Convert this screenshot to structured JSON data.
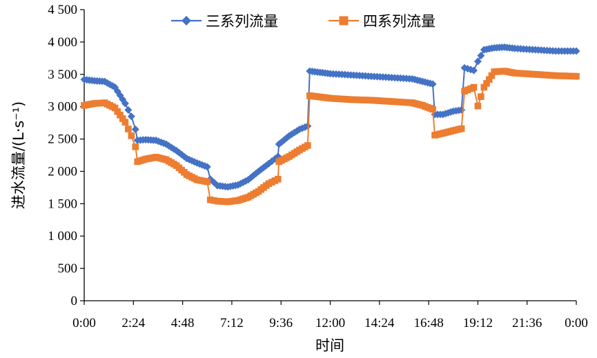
{
  "chart_data": {
    "type": "line",
    "xlabel": "时间",
    "ylabel": "进水流量/(L·s⁻¹)",
    "ylim": [
      0,
      4500
    ],
    "y_ticks": [
      0,
      500,
      1000,
      1500,
      2000,
      2500,
      3000,
      3500,
      4000,
      4500
    ],
    "y_tick_labels": [
      "0",
      "500",
      "1 000",
      "1 500",
      "2 000",
      "2 500",
      "3 000",
      "3 500",
      "4 000",
      "4 500"
    ],
    "x_tick_labels": [
      "0:00",
      "2:24",
      "4:48",
      "7:12",
      "9:36",
      "12:00",
      "14:24",
      "16:48",
      "19:12",
      "21:36",
      "0:00"
    ],
    "x_range_hours": [
      0,
      24
    ],
    "grid": false,
    "legend_position": "top",
    "series": [
      {
        "name": "三系列流量",
        "color": "#4472C4",
        "marker": "diamond",
        "points": [
          [
            0.0,
            3420
          ],
          [
            0.5,
            3400
          ],
          [
            1.0,
            3390
          ],
          [
            1.5,
            3300
          ],
          [
            2.0,
            3050
          ],
          [
            2.3,
            2850
          ],
          [
            2.5,
            2650
          ],
          [
            2.6,
            2480
          ],
          [
            3.0,
            2490
          ],
          [
            3.5,
            2480
          ],
          [
            4.0,
            2420
          ],
          [
            4.5,
            2320
          ],
          [
            5.0,
            2200
          ],
          [
            5.5,
            2130
          ],
          [
            6.0,
            2070
          ],
          [
            6.15,
            1880
          ],
          [
            6.5,
            1780
          ],
          [
            7.0,
            1760
          ],
          [
            7.5,
            1790
          ],
          [
            8.0,
            1870
          ],
          [
            8.5,
            2000
          ],
          [
            9.0,
            2120
          ],
          [
            9.45,
            2230
          ],
          [
            9.5,
            2420
          ],
          [
            10.0,
            2550
          ],
          [
            10.5,
            2650
          ],
          [
            10.9,
            2700
          ],
          [
            11.0,
            3550
          ],
          [
            11.5,
            3530
          ],
          [
            12.0,
            3510
          ],
          [
            13.0,
            3490
          ],
          [
            14.0,
            3470
          ],
          [
            15.0,
            3450
          ],
          [
            16.0,
            3430
          ],
          [
            16.5,
            3390
          ],
          [
            17.0,
            3350
          ],
          [
            17.1,
            2880
          ],
          [
            17.5,
            2880
          ],
          [
            18.0,
            2930
          ],
          [
            18.4,
            2950
          ],
          [
            18.55,
            3600
          ],
          [
            19.0,
            3560
          ],
          [
            19.2,
            3700
          ],
          [
            19.5,
            3880
          ],
          [
            20.0,
            3910
          ],
          [
            20.5,
            3920
          ],
          [
            21.0,
            3900
          ],
          [
            22.0,
            3880
          ],
          [
            23.0,
            3860
          ],
          [
            24.0,
            3860
          ]
        ]
      },
      {
        "name": "四系列流量",
        "color": "#ED7D31",
        "marker": "square",
        "points": [
          [
            0.0,
            3020
          ],
          [
            0.5,
            3050
          ],
          [
            1.0,
            3060
          ],
          [
            1.5,
            2980
          ],
          [
            2.0,
            2760
          ],
          [
            2.3,
            2550
          ],
          [
            2.5,
            2380
          ],
          [
            2.6,
            2150
          ],
          [
            3.0,
            2190
          ],
          [
            3.5,
            2220
          ],
          [
            4.0,
            2180
          ],
          [
            4.5,
            2090
          ],
          [
            5.0,
            1950
          ],
          [
            5.5,
            1870
          ],
          [
            6.0,
            1840
          ],
          [
            6.15,
            1560
          ],
          [
            6.5,
            1540
          ],
          [
            7.0,
            1530
          ],
          [
            7.5,
            1550
          ],
          [
            8.0,
            1600
          ],
          [
            8.5,
            1690
          ],
          [
            9.0,
            1810
          ],
          [
            9.45,
            1880
          ],
          [
            9.5,
            2150
          ],
          [
            10.0,
            2230
          ],
          [
            10.5,
            2330
          ],
          [
            10.9,
            2400
          ],
          [
            11.0,
            3170
          ],
          [
            11.5,
            3150
          ],
          [
            12.0,
            3130
          ],
          [
            13.0,
            3110
          ],
          [
            14.0,
            3100
          ],
          [
            15.0,
            3080
          ],
          [
            16.0,
            3060
          ],
          [
            16.5,
            3020
          ],
          [
            17.0,
            2960
          ],
          [
            17.1,
            2560
          ],
          [
            17.5,
            2590
          ],
          [
            18.0,
            2630
          ],
          [
            18.4,
            2660
          ],
          [
            18.55,
            3240
          ],
          [
            19.0,
            3300
          ],
          [
            19.2,
            3010
          ],
          [
            19.5,
            3300
          ],
          [
            20.0,
            3540
          ],
          [
            20.5,
            3550
          ],
          [
            21.0,
            3520
          ],
          [
            22.0,
            3500
          ],
          [
            23.0,
            3480
          ],
          [
            24.0,
            3470
          ]
        ]
      }
    ]
  }
}
